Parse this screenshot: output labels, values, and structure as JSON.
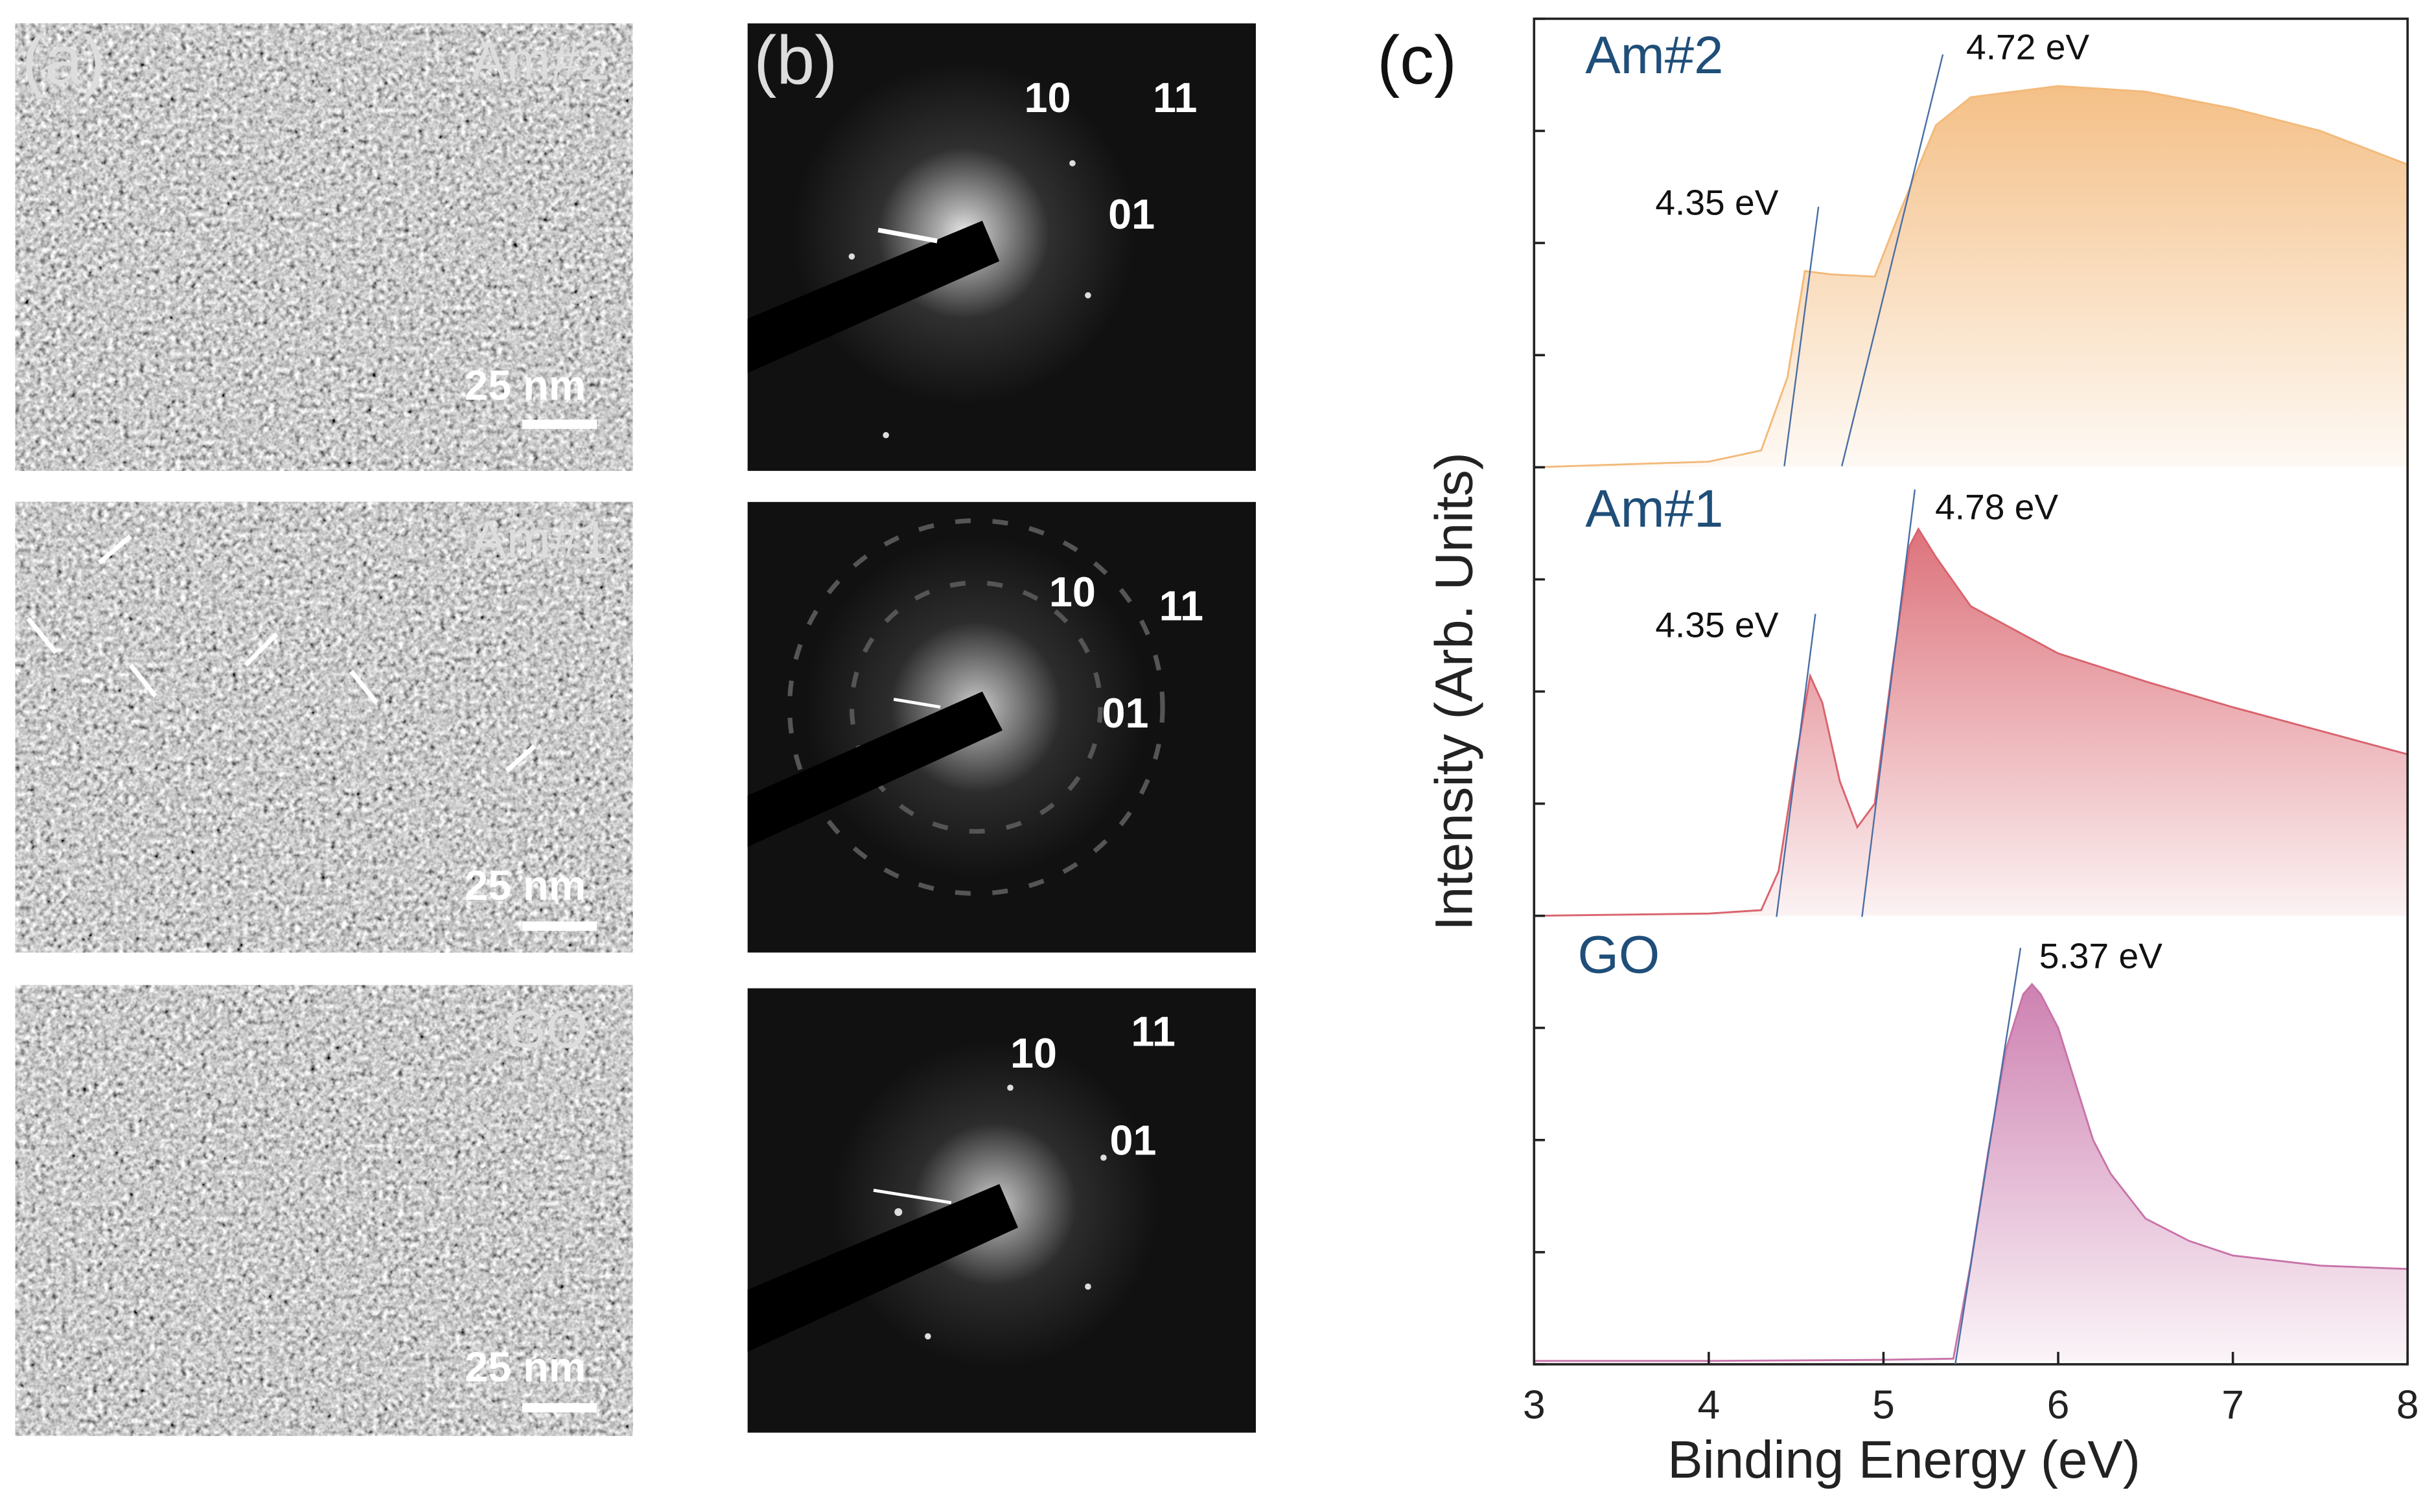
{
  "panels": {
    "a": {
      "label": "(a)",
      "images": [
        {
          "name": "Am#2",
          "scale_bar": "25 nm"
        },
        {
          "name": "Am#1",
          "scale_bar": "25 nm"
        },
        {
          "name": "GO",
          "scale_bar": "25 nm"
        }
      ]
    },
    "b": {
      "label": "(b)",
      "patterns": [
        {
          "spots": [
            "10",
            "11",
            "01"
          ]
        },
        {
          "spots": [
            "10",
            "11",
            "01"
          ]
        },
        {
          "spots": [
            "10",
            "11",
            "01"
          ]
        }
      ]
    },
    "c": {
      "label": "(c)"
    }
  },
  "chart_data": {
    "type": "area",
    "xlabel": "Binding Energy (eV)",
    "ylabel": "Intensity (Arb. Units)",
    "xlim": [
      3,
      8
    ],
    "xticks": [
      3,
      4,
      5,
      6,
      7,
      8
    ],
    "ylim": [
      0,
      12
    ],
    "yticks": [
      0,
      1,
      2,
      3,
      4,
      5,
      6,
      7,
      8,
      9,
      10,
      11,
      12
    ],
    "series": [
      {
        "name": "Am#2",
        "color": "#f3b97a",
        "edge_labels": [
          "4.35 eV",
          "4.72 eV"
        ],
        "x": [
          3,
          4,
          4.3,
          4.45,
          4.55,
          4.7,
          4.95,
          5.1,
          5.3,
          5.5,
          6,
          6.5,
          7,
          7.5,
          8
        ],
        "values": [
          8.0,
          8.05,
          8.15,
          8.8,
          9.75,
          9.72,
          9.7,
          10.3,
          11.05,
          11.3,
          11.4,
          11.35,
          11.2,
          11.0,
          10.7
        ]
      },
      {
        "name": "Am#1",
        "color": "#d9636d",
        "edge_labels": [
          "4.35 eV",
          "4.78 eV"
        ],
        "x": [
          3,
          4,
          4.3,
          4.4,
          4.5,
          4.58,
          4.65,
          4.75,
          4.85,
          4.95,
          5.05,
          5.15,
          5.2,
          5.3,
          5.5,
          6,
          6.5,
          7,
          7.5,
          8
        ],
        "values": [
          4.0,
          4.02,
          4.05,
          4.4,
          5.4,
          6.14,
          5.9,
          5.2,
          4.79,
          5.0,
          6.2,
          7.3,
          7.45,
          7.2,
          6.76,
          6.34,
          6.09,
          5.86,
          5.65,
          5.44
        ]
      },
      {
        "name": "GO",
        "color": "#c873a8",
        "edge_labels": [
          "5.37 eV"
        ],
        "x": [
          3,
          4,
          5,
          5.4,
          5.5,
          5.6,
          5.7,
          5.8,
          5.85,
          5.9,
          6.0,
          6.1,
          6.2,
          6.3,
          6.5,
          6.75,
          7.0,
          7.5,
          8.0
        ],
        "values": [
          0.03,
          0.03,
          0.04,
          0.05,
          0.9,
          1.9,
          2.8,
          3.3,
          3.39,
          3.3,
          3.0,
          2.5,
          2.0,
          1.7,
          1.3,
          1.1,
          0.97,
          0.88,
          0.85
        ]
      }
    ]
  }
}
